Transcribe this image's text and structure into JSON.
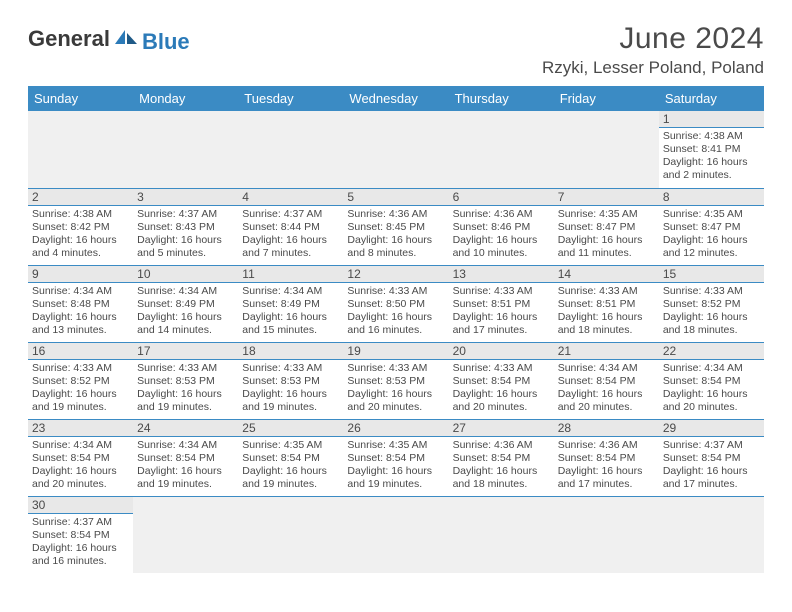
{
  "logo": {
    "textA": "General",
    "textB": "Blue"
  },
  "title": "June 2024",
  "location": "Rzyki, Lesser Poland, Poland",
  "colors": {
    "header_bg": "#3b8bc4",
    "header_fg": "#ffffff",
    "daynum_bg": "#e8e8e8",
    "empty_bg": "#f0f0f0",
    "rule": "#3b8bc4",
    "text": "#4a4a4a",
    "logo_blue": "#2b7ab8"
  },
  "weekdays": [
    "Sunday",
    "Monday",
    "Tuesday",
    "Wednesday",
    "Thursday",
    "Friday",
    "Saturday"
  ],
  "grid": [
    [
      {
        "n": null
      },
      {
        "n": null
      },
      {
        "n": null
      },
      {
        "n": null
      },
      {
        "n": null
      },
      {
        "n": null
      },
      {
        "n": 1,
        "sunrise": "4:38 AM",
        "sunset": "8:41 PM",
        "daylight": "16 hours and 2 minutes."
      }
    ],
    [
      {
        "n": 2,
        "sunrise": "4:38 AM",
        "sunset": "8:42 PM",
        "daylight": "16 hours and 4 minutes."
      },
      {
        "n": 3,
        "sunrise": "4:37 AM",
        "sunset": "8:43 PM",
        "daylight": "16 hours and 5 minutes."
      },
      {
        "n": 4,
        "sunrise": "4:37 AM",
        "sunset": "8:44 PM",
        "daylight": "16 hours and 7 minutes."
      },
      {
        "n": 5,
        "sunrise": "4:36 AM",
        "sunset": "8:45 PM",
        "daylight": "16 hours and 8 minutes."
      },
      {
        "n": 6,
        "sunrise": "4:36 AM",
        "sunset": "8:46 PM",
        "daylight": "16 hours and 10 minutes."
      },
      {
        "n": 7,
        "sunrise": "4:35 AM",
        "sunset": "8:47 PM",
        "daylight": "16 hours and 11 minutes."
      },
      {
        "n": 8,
        "sunrise": "4:35 AM",
        "sunset": "8:47 PM",
        "daylight": "16 hours and 12 minutes."
      }
    ],
    [
      {
        "n": 9,
        "sunrise": "4:34 AM",
        "sunset": "8:48 PM",
        "daylight": "16 hours and 13 minutes."
      },
      {
        "n": 10,
        "sunrise": "4:34 AM",
        "sunset": "8:49 PM",
        "daylight": "16 hours and 14 minutes."
      },
      {
        "n": 11,
        "sunrise": "4:34 AM",
        "sunset": "8:49 PM",
        "daylight": "16 hours and 15 minutes."
      },
      {
        "n": 12,
        "sunrise": "4:33 AM",
        "sunset": "8:50 PM",
        "daylight": "16 hours and 16 minutes."
      },
      {
        "n": 13,
        "sunrise": "4:33 AM",
        "sunset": "8:51 PM",
        "daylight": "16 hours and 17 minutes."
      },
      {
        "n": 14,
        "sunrise": "4:33 AM",
        "sunset": "8:51 PM",
        "daylight": "16 hours and 18 minutes."
      },
      {
        "n": 15,
        "sunrise": "4:33 AM",
        "sunset": "8:52 PM",
        "daylight": "16 hours and 18 minutes."
      }
    ],
    [
      {
        "n": 16,
        "sunrise": "4:33 AM",
        "sunset": "8:52 PM",
        "daylight": "16 hours and 19 minutes."
      },
      {
        "n": 17,
        "sunrise": "4:33 AM",
        "sunset": "8:53 PM",
        "daylight": "16 hours and 19 minutes."
      },
      {
        "n": 18,
        "sunrise": "4:33 AM",
        "sunset": "8:53 PM",
        "daylight": "16 hours and 19 minutes."
      },
      {
        "n": 19,
        "sunrise": "4:33 AM",
        "sunset": "8:53 PM",
        "daylight": "16 hours and 20 minutes."
      },
      {
        "n": 20,
        "sunrise": "4:33 AM",
        "sunset": "8:54 PM",
        "daylight": "16 hours and 20 minutes."
      },
      {
        "n": 21,
        "sunrise": "4:34 AM",
        "sunset": "8:54 PM",
        "daylight": "16 hours and 20 minutes."
      },
      {
        "n": 22,
        "sunrise": "4:34 AM",
        "sunset": "8:54 PM",
        "daylight": "16 hours and 20 minutes."
      }
    ],
    [
      {
        "n": 23,
        "sunrise": "4:34 AM",
        "sunset": "8:54 PM",
        "daylight": "16 hours and 20 minutes."
      },
      {
        "n": 24,
        "sunrise": "4:34 AM",
        "sunset": "8:54 PM",
        "daylight": "16 hours and 19 minutes."
      },
      {
        "n": 25,
        "sunrise": "4:35 AM",
        "sunset": "8:54 PM",
        "daylight": "16 hours and 19 minutes."
      },
      {
        "n": 26,
        "sunrise": "4:35 AM",
        "sunset": "8:54 PM",
        "daylight": "16 hours and 19 minutes."
      },
      {
        "n": 27,
        "sunrise": "4:36 AM",
        "sunset": "8:54 PM",
        "daylight": "16 hours and 18 minutes."
      },
      {
        "n": 28,
        "sunrise": "4:36 AM",
        "sunset": "8:54 PM",
        "daylight": "16 hours and 17 minutes."
      },
      {
        "n": 29,
        "sunrise": "4:37 AM",
        "sunset": "8:54 PM",
        "daylight": "16 hours and 17 minutes."
      }
    ],
    [
      {
        "n": 30,
        "sunrise": "4:37 AM",
        "sunset": "8:54 PM",
        "daylight": "16 hours and 16 minutes."
      },
      {
        "n": null
      },
      {
        "n": null
      },
      {
        "n": null
      },
      {
        "n": null
      },
      {
        "n": null
      },
      {
        "n": null
      }
    ]
  ],
  "labels": {
    "sunrise": "Sunrise:",
    "sunset": "Sunset:",
    "daylight": "Daylight:"
  }
}
